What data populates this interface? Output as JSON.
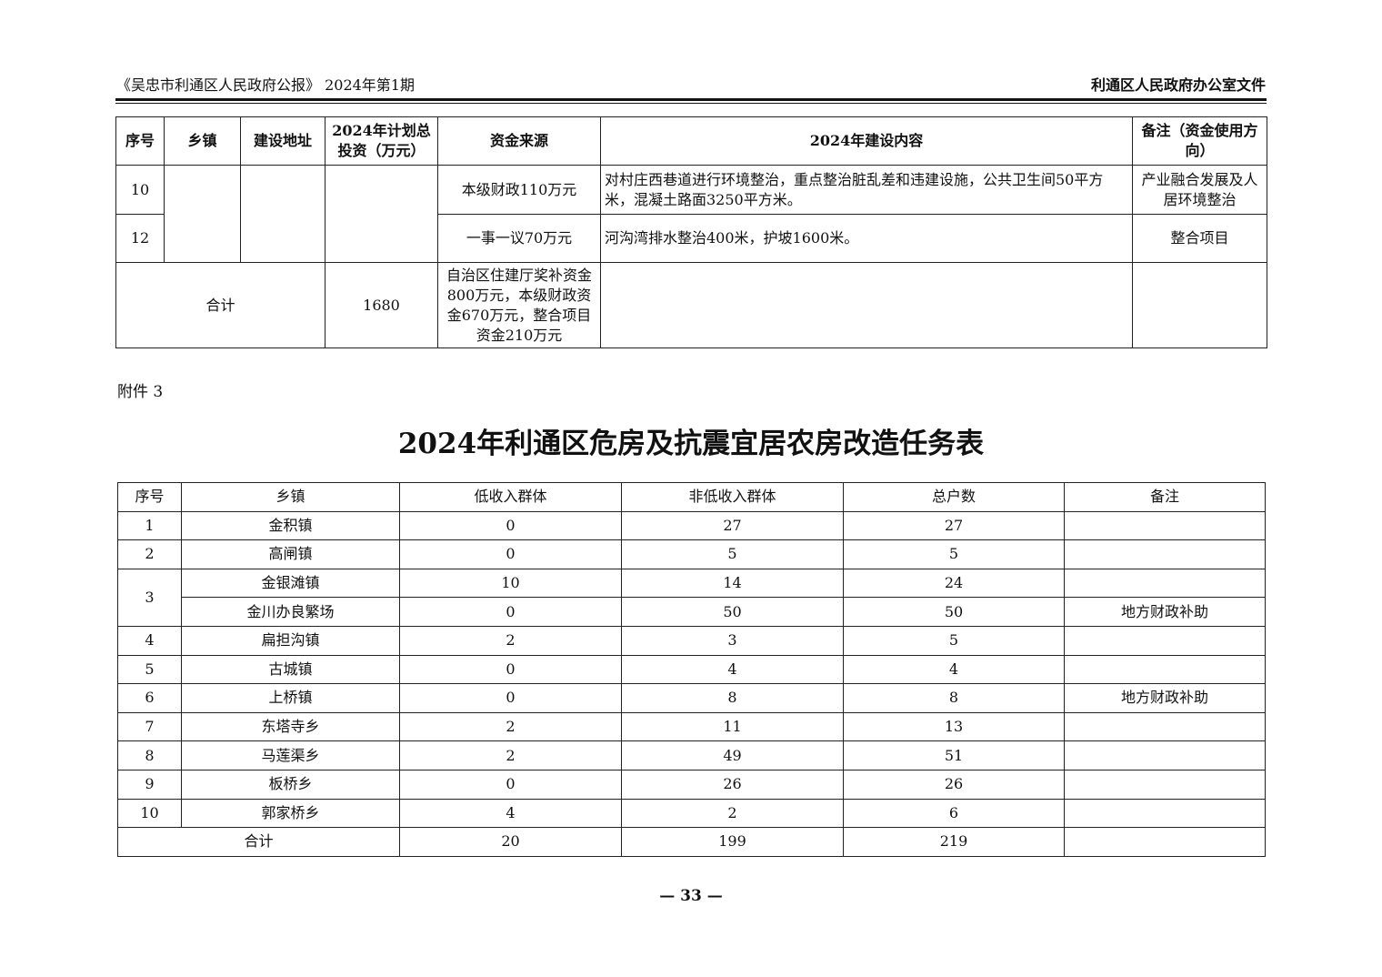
{
  "header": {
    "left": "《吴忠市利通区人民政府公报》 2024年第1期",
    "right": "利通区人民政府办公室文件"
  },
  "table1": {
    "headers": [
      "序号",
      "乡镇",
      "建设地址",
      "2024年计划总投资（万元）",
      "资金来源",
      "2024年建设内容",
      "备注（资金使用方向）"
    ],
    "rows": [
      {
        "no": "10",
        "source": "本级财政110万元",
        "content": "对村庄西巷道进行环境整治，重点整治脏乱差和违建设施，公共卫生间50平方米，混凝土路面3250平方米。",
        "note": "产业融合发展及人居环境整治"
      },
      {
        "no": "12",
        "source": "一事一议70万元",
        "content": "河沟湾排水整治400米，护坡1600米。",
        "note": "整合项目"
      }
    ],
    "total": {
      "label": "合计",
      "investment": "1680",
      "source": "自治区住建厅奖补资金800万元，本级财政资金670万元，整合项目资金210万元",
      "content": "",
      "note": ""
    }
  },
  "annex_label": "附件 3",
  "title": "2024年利通区危房及抗震宜居农房改造任务表",
  "table2": {
    "headers": [
      "序号",
      "乡镇",
      "低收入群体",
      "非低收入群体",
      "总户数",
      "备注"
    ],
    "rows": [
      {
        "no": "1",
        "town": "金积镇",
        "low": "0",
        "nonlow": "27",
        "total": "27",
        "note": ""
      },
      {
        "no": "2",
        "town": "高闸镇",
        "low": "0",
        "nonlow": "5",
        "total": "5",
        "note": ""
      },
      {
        "no": "3",
        "town": "金银滩镇",
        "low": "10",
        "nonlow": "14",
        "total": "24",
        "note": ""
      },
      {
        "no": "",
        "town": "金川办良繁场",
        "low": "0",
        "nonlow": "50",
        "total": "50",
        "note": "地方财政补助"
      },
      {
        "no": "4",
        "town": "扁担沟镇",
        "low": "2",
        "nonlow": "3",
        "total": "5",
        "note": ""
      },
      {
        "no": "5",
        "town": "古城镇",
        "low": "0",
        "nonlow": "4",
        "total": "4",
        "note": ""
      },
      {
        "no": "6",
        "town": "上桥镇",
        "low": "0",
        "nonlow": "8",
        "total": "8",
        "note": "地方财政补助"
      },
      {
        "no": "7",
        "town": "东塔寺乡",
        "low": "2",
        "nonlow": "11",
        "total": "13",
        "note": ""
      },
      {
        "no": "8",
        "town": "马莲渠乡",
        "low": "2",
        "nonlow": "49",
        "total": "51",
        "note": ""
      },
      {
        "no": "9",
        "town": "板桥乡",
        "low": "0",
        "nonlow": "26",
        "total": "26",
        "note": ""
      },
      {
        "no": "10",
        "town": "郭家桥乡",
        "low": "4",
        "nonlow": "2",
        "total": "6",
        "note": ""
      }
    ],
    "total": {
      "label": "合计",
      "low": "20",
      "nonlow": "199",
      "total": "219",
      "note": ""
    }
  },
  "page_number": "— 33 —"
}
